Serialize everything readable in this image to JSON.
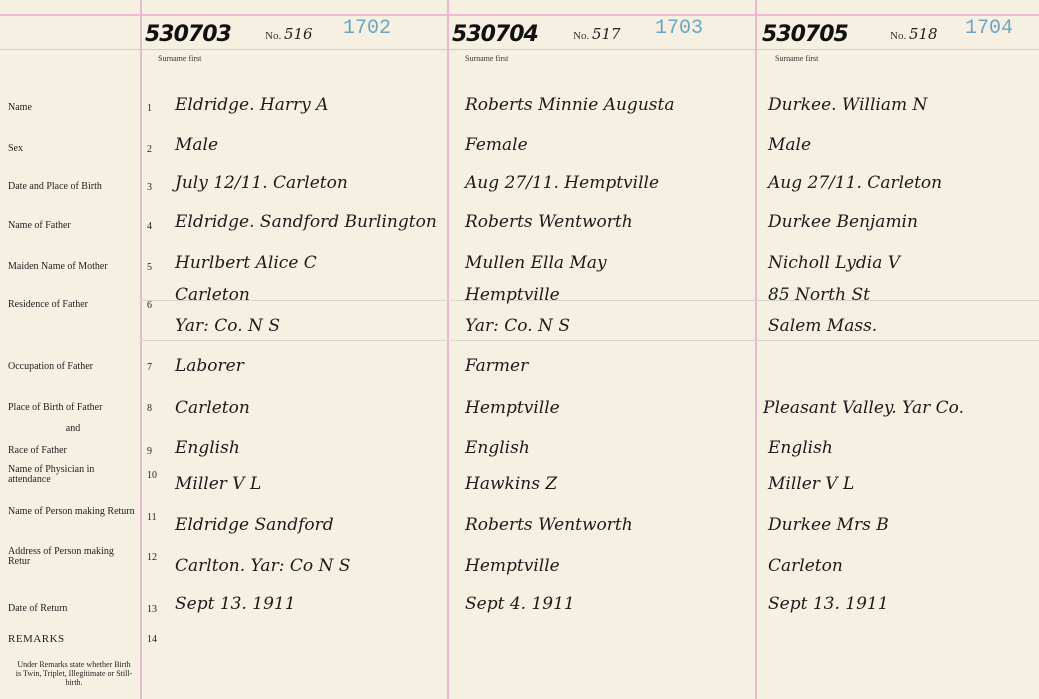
{
  "form": {
    "surname_hint": "Surname first",
    "no_label": "No.",
    "labels": [
      {
        "num": "1",
        "text": "Name"
      },
      {
        "num": "2",
        "text": "Sex"
      },
      {
        "num": "3",
        "text": "Date and Place of Birth"
      },
      {
        "num": "4",
        "text": "Name of Father"
      },
      {
        "num": "5",
        "text": "Maiden Name of Mother"
      },
      {
        "num": "6",
        "text": "Residence of Father"
      },
      {
        "num": "7",
        "text": "Occupation of Father"
      },
      {
        "num": "8",
        "text": "Place of Birth of Father"
      },
      {
        "num": "",
        "text": "and"
      },
      {
        "num": "9",
        "text": "Race of Father"
      },
      {
        "num": "10",
        "text": "Name of Physician in attendance"
      },
      {
        "num": "11",
        "text": "Name of Person making Return"
      },
      {
        "num": "12",
        "text": "Address of Person making Retur"
      },
      {
        "num": "13",
        "text": "Date of Return"
      },
      {
        "num": "14",
        "text": "REMARKS"
      }
    ],
    "remarks_note": "Under Remarks state whether Birth is Twin, Triplet, Illegitimate or Still-birth."
  },
  "entries": [
    {
      "cert": "530703",
      "no": "516",
      "stamp": "1702",
      "fields": [
        "Eldridge. Harry A",
        "Male",
        "July 12/11. Carleton",
        "Eldridge. Sandford Burlington",
        "Hurlbert Alice C",
        "Carleton",
        "Yar: Co. N S",
        "Laborer",
        "Carleton",
        "English",
        "Miller V L",
        "Eldridge Sandford",
        "Carlton. Yar: Co N S",
        "Sept 13. 1911"
      ]
    },
    {
      "cert": "530704",
      "no": "517",
      "stamp": "1703",
      "fields": [
        "Roberts Minnie Augusta",
        "Female",
        "Aug 27/11. Hemptville",
        "Roberts Wentworth",
        "Mullen Ella May",
        "Hemptville",
        "Yar: Co. N S",
        "Farmer",
        "Hemptville",
        "English",
        "Hawkins Z",
        "Roberts Wentworth",
        "Hemptville",
        "Sept 4. 1911"
      ]
    },
    {
      "cert": "530705",
      "no": "518",
      "stamp": "1704",
      "fields": [
        "Durkee. William N",
        "Male",
        "Aug 27/11. Carleton",
        "Durkee Benjamin",
        "Nicholl Lydia V",
        "85 North St",
        "Salem Mass.",
        "",
        "Pleasant Valley. Yar Co.",
        "English",
        "Miller V L",
        "Durkee Mrs B",
        "Carleton",
        "Sept 13. 1911"
      ]
    }
  ]
}
